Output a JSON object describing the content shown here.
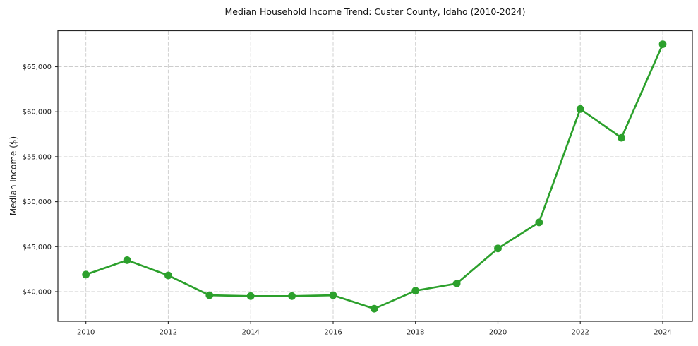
{
  "chart_data": {
    "type": "line",
    "title": "Median Household Income Trend: Custer County, Idaho (2010-2024)",
    "xlabel": "",
    "ylabel": "Median Income ($)",
    "x": [
      2010,
      2011,
      2012,
      2013,
      2014,
      2015,
      2016,
      2017,
      2018,
      2019,
      2020,
      2021,
      2022,
      2023,
      2024
    ],
    "values": [
      41900,
      43500,
      41800,
      39600,
      39500,
      39500,
      39600,
      38100,
      40100,
      40900,
      44800,
      47700,
      60300,
      57100,
      67500
    ],
    "xticks": [
      2010,
      2012,
      2014,
      2016,
      2018,
      2020,
      2022,
      2024
    ],
    "xtick_labels": [
      "2010",
      "2012",
      "2014",
      "2016",
      "2018",
      "2020",
      "2022",
      "2024"
    ],
    "yticks": [
      40000,
      45000,
      50000,
      55000,
      60000,
      65000
    ],
    "ytick_labels": [
      "$40,000",
      "$45,000",
      "$50,000",
      "$55,000",
      "$60,000",
      "$65,000"
    ],
    "xlim": [
      2009.32,
      2024.72
    ],
    "ylim": [
      36700,
      69000
    ],
    "grid": true,
    "grid_linestyle": "dashed",
    "legend": "none",
    "marker": "circle",
    "line_color": "#2ca02c",
    "marker_color": "#2ca02c",
    "grid_color": "#cccccc",
    "axis_color": "#262626",
    "text_color": "#1c1c1c",
    "background_color": "#ffffff"
  }
}
